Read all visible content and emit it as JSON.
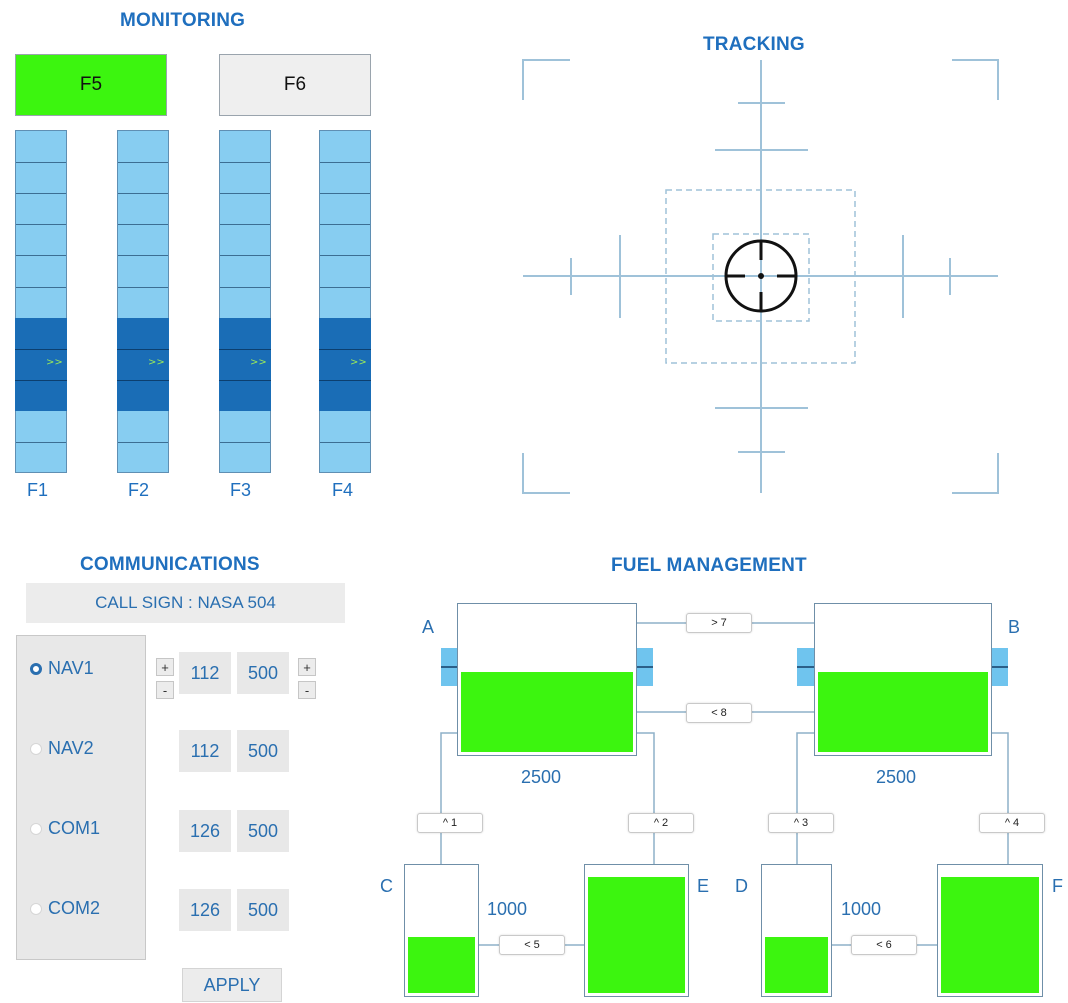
{
  "monitoring": {
    "title": "MONITORING",
    "buttons": [
      {
        "label": "F5",
        "state": "on",
        "color": "#3cf50f"
      },
      {
        "label": "F6",
        "state": "off",
        "color": "#efefef"
      }
    ],
    "gauges": [
      {
        "label": "F1",
        "arrow": ">>"
      },
      {
        "label": "F2",
        "arrow": ">>"
      },
      {
        "label": "F3",
        "arrow": ">>"
      },
      {
        "label": "F4",
        "arrow": ">>"
      }
    ],
    "gauge_colors": {
      "light": "#87cdf1",
      "dark": "#1a6db6"
    }
  },
  "tracking": {
    "title": "TRACKING",
    "target_icon": "crosshair-icon"
  },
  "communications": {
    "title": "COMMUNICATIONS",
    "call_sign": "CALL SIGN : NASA 504",
    "radios": [
      {
        "label": "NAV1",
        "selected": true,
        "freq_main": "112",
        "freq_sub": "500"
      },
      {
        "label": "NAV2",
        "selected": false,
        "freq_main": "112",
        "freq_sub": "500"
      },
      {
        "label": "COM1",
        "selected": false,
        "freq_main": "126",
        "freq_sub": "500"
      },
      {
        "label": "COM2",
        "selected": false,
        "freq_main": "126",
        "freq_sub": "500"
      }
    ],
    "step_plus": "+",
    "step_minus": "-",
    "apply_label": "APPLY"
  },
  "fuel": {
    "title": "FUEL MANAGEMENT",
    "fill_color": "#3cf50f",
    "tanks": {
      "A": {
        "label": "A",
        "value": "2500",
        "level": 0.55
      },
      "B": {
        "label": "B",
        "value": "2500",
        "level": 0.55
      },
      "C": {
        "label": "C",
        "value": "1000",
        "level": 0.45
      },
      "D": {
        "label": "D",
        "value": "1000",
        "level": 0.45
      },
      "E": {
        "label": "E",
        "level": 0.93
      },
      "F": {
        "label": "F",
        "level": 0.93
      }
    },
    "pumps": {
      "p7": "> 7",
      "p8": "< 8",
      "p1": "^ 1",
      "p2": "^ 2",
      "p3": "^ 3",
      "p4": "^ 4",
      "p5": "< 5",
      "p6": "< 6"
    }
  }
}
